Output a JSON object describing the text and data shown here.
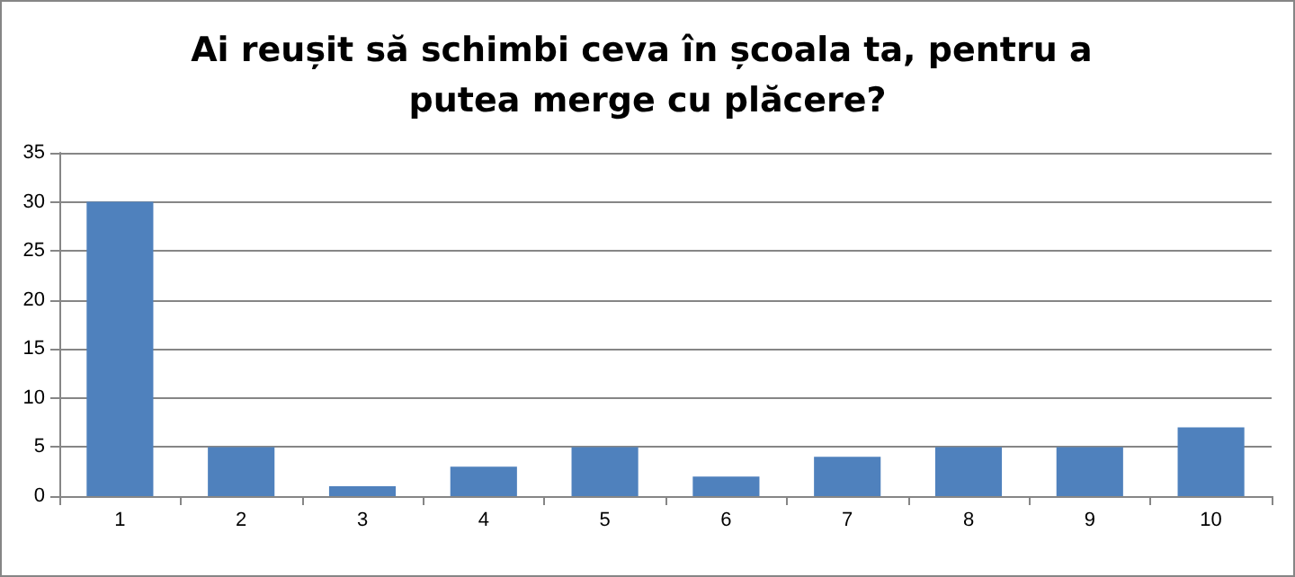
{
  "chart_data": {
    "type": "bar",
    "title": "Ai reușit să schimbi ceva în școala ta, pentru a putea merge cu plăcere?",
    "categories": [
      "1",
      "2",
      "3",
      "4",
      "5",
      "6",
      "7",
      "8",
      "9",
      "10"
    ],
    "values": [
      30,
      5,
      1,
      3,
      5,
      2,
      4,
      5,
      5,
      7
    ],
    "color": "#4f81bd",
    "ylim": [
      0,
      35
    ],
    "yticks": [
      0,
      5,
      10,
      15,
      20,
      25,
      30,
      35
    ],
    "grid": "y"
  }
}
